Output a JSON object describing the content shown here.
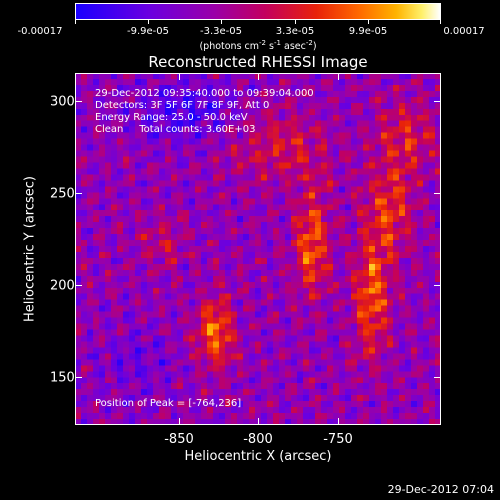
{
  "colorbar": {
    "tick_labels": [
      "-0.00017",
      "-9.9e-05",
      "-3.3e-05",
      "3.3e-05",
      "9.9e-05",
      "0.00017"
    ],
    "units_prefix": "(photons cm",
    "units_exp1": "-2",
    "units_mid1": " s",
    "units_exp2": "-1",
    "units_mid2": " asec",
    "units_exp3": "-2",
    "units_suffix": ")"
  },
  "title": "Reconstructed RHESSI Image",
  "info": {
    "time_range": "29-Dec-2012 09:35:40.000 to 09:39:04.000",
    "detectors": "Detectors: 3F 5F 6F 7F 8F 9F, Att 0",
    "energy_range": "Energy Range: 25.0 - 50.0 keV",
    "method": "Clean     Total counts: 3.60E+03"
  },
  "peak_position": "Position of Peak = [-764,236]",
  "x_axis": {
    "title": "Heliocentric X (arcsec)",
    "tick_labels": [
      "-850",
      "-800",
      "-750"
    ]
  },
  "y_axis": {
    "title": "Heliocentric Y (arcsec)",
    "tick_labels": [
      "300",
      "250",
      "200",
      "150"
    ]
  },
  "footer": "29-Dec-2012 07:04"
}
